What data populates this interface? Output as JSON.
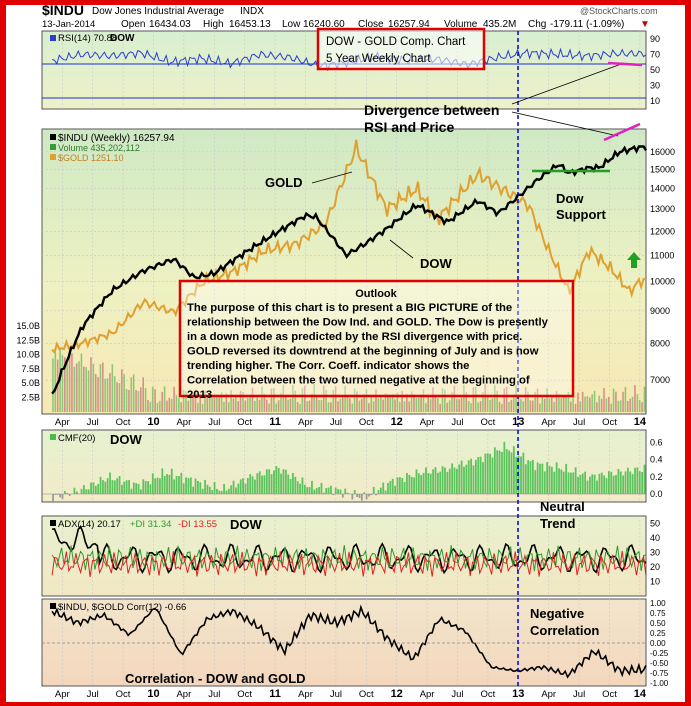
{
  "header": {
    "symbol": "$INDU",
    "name": "Dow Jones Industrial Average",
    "exchange": "INDX",
    "date": "13-Jan-2014",
    "open_label": "Open",
    "open": "16434.03",
    "high_label": "High",
    "high": "16453.13",
    "low_label": "Low",
    "low": "16240.60",
    "close_label": "Close",
    "close": "16257.94",
    "volume_label": "Volume",
    "volume": "435.2M",
    "chg_label": "Chg",
    "chg": "-179.11 (-1.09%)",
    "chg_arrow": "▼",
    "watermark": "@StockCharts.com"
  },
  "colors": {
    "frame": "#e00000",
    "dow": "#000000",
    "gold": "#e0a030",
    "rsi": "#2a3fd0",
    "volume_up": "#3c9a3c",
    "volume_down": "#c85050",
    "cmf": "#4cbb4c",
    "adx": "#000000",
    "plus_di": "#2e9a2e",
    "minus_di": "#e02020",
    "annotation_magenta": "#e020c0",
    "arrow_up": "#22a022"
  },
  "annotations": {
    "title_line1": "DOW - GOLD Comp. Chart",
    "title_line2": "5 Year Weekly Chart",
    "divergence_line1": "Divergence between",
    "divergence_line2": "RSI and Price",
    "gold_label": "GOLD",
    "dow_label": "DOW",
    "dow_support_line1": "Dow",
    "dow_support_line2": "Support",
    "outlook_title": "Outlook",
    "outlook_text": "The purpose of this chart is to present a BIG PICTURE of the relationship between the Dow Ind. and GOLD. The Dow is presently in a down mode as predicted by the RSI divergence with price. GOLD reversed its downtrend at the beginning of July and is now trending higher. The Corr. Coeff. indicator shows the Correlation between the two turned negative at the beginning of 2013",
    "cmf_dow": "DOW",
    "adx_dow": "DOW",
    "rsi_dow": "DOW",
    "neutral_line1": "Neutral",
    "neutral_line2": "Trend",
    "negative_line1": "Negative",
    "negative_line2": "Correlation",
    "correlation_label": "Correlation - DOW and GOLD"
  },
  "panels": {
    "rsi": {
      "legend": "RSI(14) 70.88",
      "ticks": [
        "90",
        "70",
        "50",
        "30",
        "10"
      ]
    },
    "price": {
      "legend_dow": "$INDU (Weekly) 16257.94",
      "legend_volume": "Volume 435,202,112",
      "legend_gold": "$GOLD 1251.10",
      "ticks": [
        "16000",
        "15000",
        "14000",
        "13000",
        "12000",
        "11000",
        "10000",
        "9000",
        "8000",
        "7000"
      ],
      "volume_ticks": [
        "15.0B",
        "12.5B",
        "10.0B",
        "7.5B",
        "5.0B",
        "2.5B"
      ]
    },
    "cmf": {
      "legend": "CMF(20)",
      "ticks": [
        "0.6",
        "0.4",
        "0.2",
        "0.0"
      ]
    },
    "adx": {
      "legend_adx": "ADX(14) 20.17",
      "legend_pdi": "+DI 31.34",
      "legend_mdi": "-DI 13.55",
      "ticks": [
        "50",
        "40",
        "30",
        "20",
        "10"
      ]
    },
    "corr": {
      "legend": "$INDU, $GOLD Corr(12) -0.66",
      "ticks": [
        "1.00",
        "0.75",
        "0.50",
        "0.25",
        "0.00",
        "-0.25",
        "-0.50",
        "-0.75",
        "-1.00"
      ]
    }
  },
  "x_axis": {
    "labels": [
      "Apr",
      "Jul",
      "Oct",
      "10",
      "Apr",
      "Jul",
      "Oct",
      "11",
      "Apr",
      "Jul",
      "Oct",
      "12",
      "Apr",
      "Jul",
      "Oct",
      "13",
      "Apr",
      "Jul",
      "Oct",
      "14"
    ],
    "bold": [
      "10",
      "11",
      "12",
      "13",
      "14"
    ]
  },
  "chart_data": {
    "type": "line",
    "x_range": [
      "2009-03",
      "2014-01"
    ],
    "series": [
      {
        "name": "$INDU (Weekly)",
        "x": [
          "2009-03",
          "2009-06",
          "2009-09",
          "2009-12",
          "2010-03",
          "2010-05",
          "2010-07",
          "2010-10",
          "2011-01",
          "2011-04",
          "2011-05",
          "2011-08",
          "2011-10",
          "2011-12",
          "2012-03",
          "2012-06",
          "2012-09",
          "2012-11",
          "2013-01",
          "2013-03",
          "2013-05",
          "2013-06",
          "2013-08",
          "2013-09",
          "2013-11",
          "2014-01"
        ],
        "values": [
          6600,
          8500,
          9700,
          10400,
          10850,
          10150,
          10300,
          11100,
          11900,
          12700,
          12650,
          11000,
          11500,
          12100,
          13200,
          12400,
          13400,
          12800,
          13600,
          14500,
          15300,
          14800,
          15100,
          15100,
          16000,
          16257.94
        ]
      },
      {
        "name": "$GOLD",
        "x": [
          "2009-03",
          "2009-06",
          "2009-09",
          "2009-12",
          "2010-03",
          "2010-06",
          "2010-09",
          "2010-12",
          "2011-03",
          "2011-06",
          "2011-09",
          "2011-12",
          "2012-03",
          "2012-05",
          "2012-09",
          "2012-12",
          "2013-02",
          "2013-04",
          "2013-06",
          "2013-08",
          "2013-10",
          "2013-12",
          "2014-01"
        ],
        "values": [
          920,
          950,
          1000,
          1150,
          1100,
          1250,
          1300,
          1400,
          1430,
          1530,
          1900,
          1600,
          1700,
          1550,
          1770,
          1680,
          1620,
          1400,
          1200,
          1400,
          1320,
          1200,
          1251.1
        ]
      }
    ],
    "rsi_values": [
      62,
      70,
      68,
      72,
      60,
      65,
      58,
      70,
      66,
      55,
      60,
      67,
      62,
      64,
      57,
      66,
      72,
      70,
      68,
      71,
      70.88
    ],
    "cmf_values": [
      -0.05,
      0.05,
      0.2,
      0.1,
      0.25,
      0.15,
      0.05,
      0.2,
      0.3,
      0.1,
      0.05,
      -0.05,
      0.15,
      0.25,
      0.3,
      0.4,
      0.55,
      0.35,
      0.3,
      0.2,
      0.25,
      0.3
    ],
    "corr_values": [
      0.8,
      0.5,
      0.7,
      0.2,
      0.9,
      -0.3,
      0.6,
      0.8,
      0.4,
      -0.2,
      0.7,
      0.5,
      0.8,
      0.1,
      -0.4,
      0.6,
      0.3,
      -0.6,
      -0.7,
      -0.6,
      -0.8,
      -0.2,
      -0.7,
      -0.66
    ]
  }
}
